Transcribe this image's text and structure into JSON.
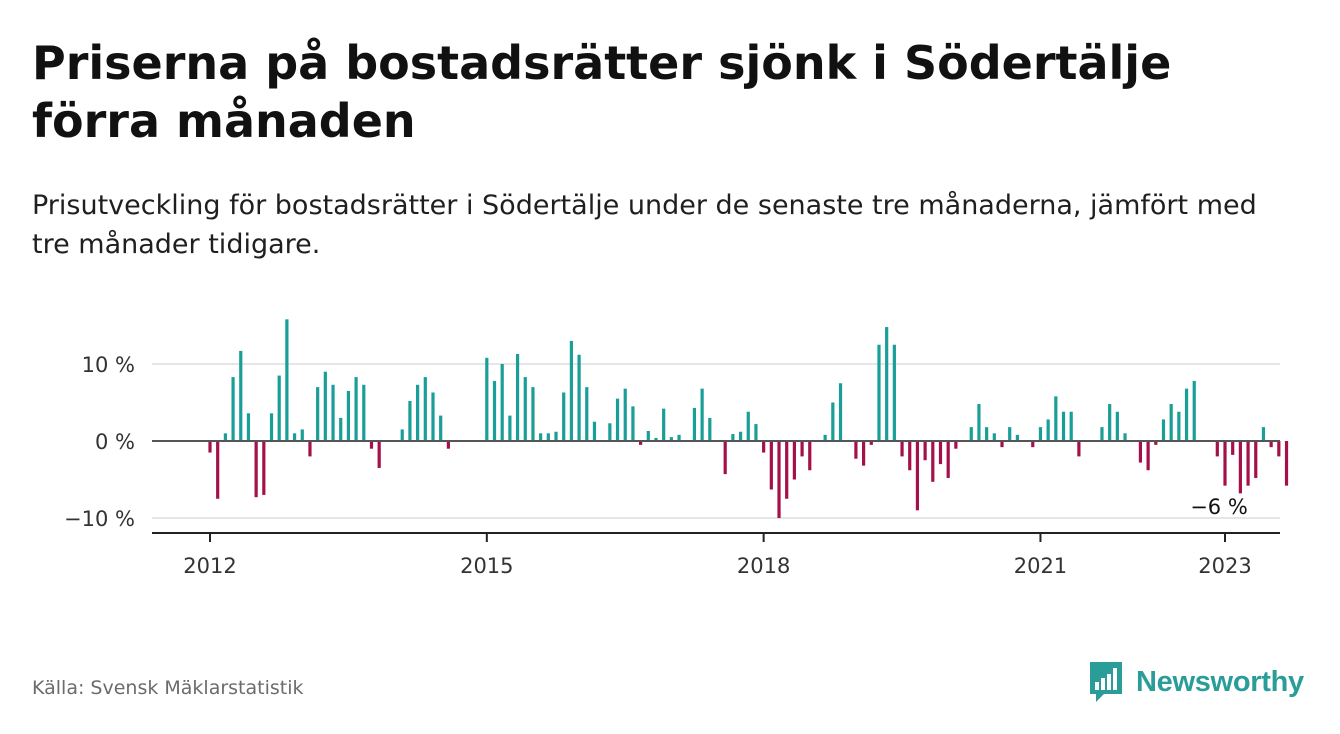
{
  "title": "Priserna på bostadsrätter sjönk i Södertälje förra månaden",
  "subtitle": "Prisutveckling för bostadsrätter i Södertälje under de senaste tre månaderna, jämfört med tre månader tidigare.",
  "source": "Källa: Svensk Mäklarstatistik",
  "brand": {
    "name": "Newsworthy",
    "icon": "newsworthy-logo-icon",
    "color": "#2a9d99"
  },
  "colors": {
    "positive": "#1a9e98",
    "negative": "#a4104a",
    "zero_line": "#555555",
    "grid": "#dddddd"
  },
  "chart_data": {
    "type": "bar",
    "title": "",
    "xlabel": "",
    "ylabel": "",
    "x_start": "2012-01",
    "x_end": "2023-01",
    "ylim": [
      -11,
      16
    ],
    "yticks": [
      {
        "value": 10,
        "label": "10 %"
      },
      {
        "value": 0,
        "label": "0 %"
      },
      {
        "value": -10,
        "label": "−10 %"
      }
    ],
    "xticks": [
      {
        "value": "2012-01",
        "label": "2012"
      },
      {
        "value": "2015-01",
        "label": "2015"
      },
      {
        "value": "2018-01",
        "label": "2018"
      },
      {
        "value": "2021-01",
        "label": "2021"
      },
      {
        "value": "2023-01",
        "label": "2023"
      }
    ],
    "grid": "horizontal",
    "values": [
      -1.5,
      -7.5,
      1,
      8.3,
      11.7,
      3.6,
      -7.3,
      -7,
      3.6,
      8.5,
      15.8,
      1,
      1.5,
      -2,
      7,
      9,
      7.3,
      3,
      6.5,
      8.3,
      7.3,
      -1,
      -3.5,
      0,
      0,
      1.5,
      5.2,
      7.3,
      8.3,
      6.3,
      3.3,
      -1,
      0,
      0,
      0,
      0,
      10.8,
      7.8,
      10,
      3.3,
      11.3,
      8.3,
      7,
      1,
      1,
      1.2,
      6.3,
      13,
      11.2,
      7,
      2.5,
      0,
      2.3,
      5.5,
      6.8,
      4.5,
      -0.5,
      1.3,
      0.4,
      4.2,
      0.5,
      0.8,
      0,
      4.3,
      6.8,
      3,
      0,
      -4.3,
      0.9,
      1.2,
      3.8,
      2.2,
      -1.5,
      -6.3,
      -10,
      -7.5,
      -5,
      -2,
      -3.8,
      0,
      0.8,
      5,
      7.5,
      0,
      -2.3,
      -3.2,
      -0.5,
      12.5,
      14.8,
      12.5,
      -2,
      -3.8,
      -9,
      -2.5,
      -5.3,
      -3,
      -4.8,
      -1,
      0,
      1.8,
      4.8,
      1.8,
      1,
      -0.8,
      1.8,
      0.8,
      0,
      -0.8,
      1.8,
      2.8,
      5.8,
      3.8,
      3.8,
      -2,
      0,
      0,
      1.8,
      4.8,
      3.8,
      1,
      0,
      -2.8,
      -3.8,
      -0.5,
      2.8,
      4.8,
      3.8,
      6.8,
      7.8,
      0,
      0,
      -2,
      -5.8,
      -1.8,
      -6.8,
      -5.8,
      -4.8,
      1.8,
      -0.8,
      -2,
      -5.8
    ],
    "annotations": [
      {
        "x": "2023-01",
        "value": -6,
        "label": "−6 %"
      }
    ]
  }
}
